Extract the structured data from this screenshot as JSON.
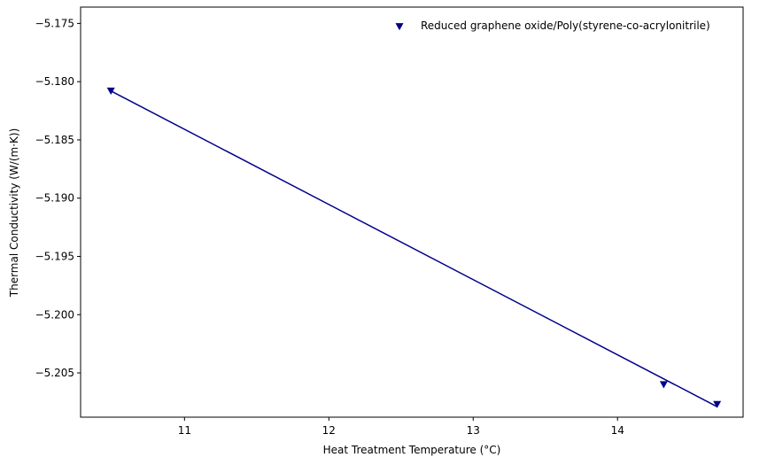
{
  "chart_data": {
    "type": "scatter",
    "title": "",
    "xlabel": "Heat Treatment Temperature (°C)",
    "ylabel": "Thermal Conductivity (W/(m·K))",
    "xlim": [
      10.28,
      14.87
    ],
    "ylim": [
      -5.2088,
      -5.1736
    ],
    "x_ticks": [
      11,
      12,
      13,
      14
    ],
    "x_tick_labels": [
      "11",
      "12",
      "13",
      "14"
    ],
    "y_ticks": [
      -5.175,
      -5.18,
      -5.185,
      -5.19,
      -5.195,
      -5.2,
      -5.205
    ],
    "y_tick_labels": [
      "−5.175",
      "−5.180",
      "−5.185",
      "−5.190",
      "−5.195",
      "−5.200",
      "−5.205"
    ],
    "grid": false,
    "legend_position": "upper right",
    "series": [
      {
        "name": "Reduced graphene oxide/Poly(styrene-co-acrylonitrile)",
        "marker": "triangle-down",
        "color": "#00008b",
        "points": [
          {
            "x": 10.49,
            "y": -5.1808
          },
          {
            "x": 14.32,
            "y": -5.206
          },
          {
            "x": 14.69,
            "y": -5.2077
          }
        ],
        "fit_line": {
          "x": [
            10.49,
            14.69
          ],
          "y": [
            -5.1808,
            -5.2079
          ]
        }
      }
    ]
  }
}
